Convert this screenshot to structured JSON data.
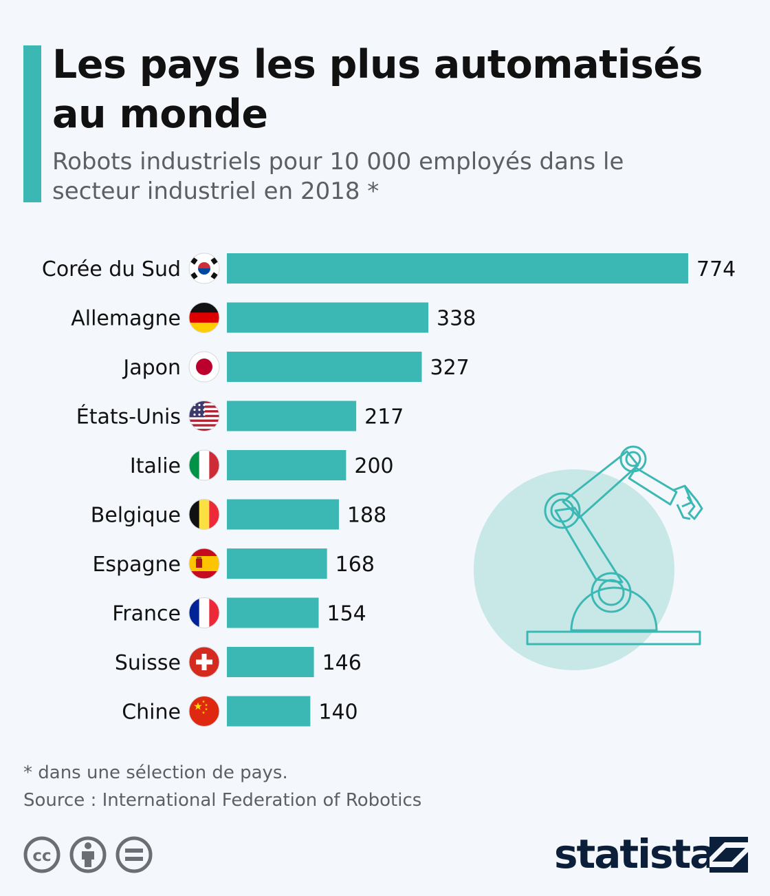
{
  "header": {
    "title": "Les pays les plus automatisés au monde",
    "subtitle": "Robots industriels pour 10 000 employés dans le secteur industriel en 2018 *"
  },
  "chart_data": {
    "type": "bar",
    "orientation": "horizontal",
    "title": "Les pays les plus automatisés au monde",
    "subtitle": "Robots industriels pour 10 000 employés dans le secteur industriel en 2018 *",
    "categories": [
      "Corée du Sud",
      "Allemagne",
      "Japon",
      "États-Unis",
      "Italie",
      "Belgique",
      "Espagne",
      "France",
      "Suisse",
      "Chine"
    ],
    "values": [
      774,
      338,
      327,
      217,
      200,
      188,
      168,
      154,
      146,
      140
    ],
    "flags": [
      "south-korea-flag-icon",
      "germany-flag-icon",
      "japan-flag-icon",
      "usa-flag-icon",
      "italy-flag-icon",
      "belgium-flag-icon",
      "spain-flag-icon",
      "france-flag-icon",
      "switzerland-flag-icon",
      "china-flag-icon"
    ],
    "bar_color": "#3bb8b4",
    "grid": false,
    "data_labels": true
  },
  "illustration": "robot-arm-icon",
  "footer": {
    "footnote": "* dans une sélection de pays.",
    "source": "Source : International Federation of Robotics",
    "brand": "statista",
    "license_icons": [
      "cc-icon",
      "attribution-icon",
      "no-derivatives-icon"
    ]
  },
  "colors": {
    "accent": "#3bb8b4",
    "text": "#111111",
    "muted": "#5b5f66",
    "brand": "#0b1f3a",
    "background": "#f4f7fb"
  }
}
